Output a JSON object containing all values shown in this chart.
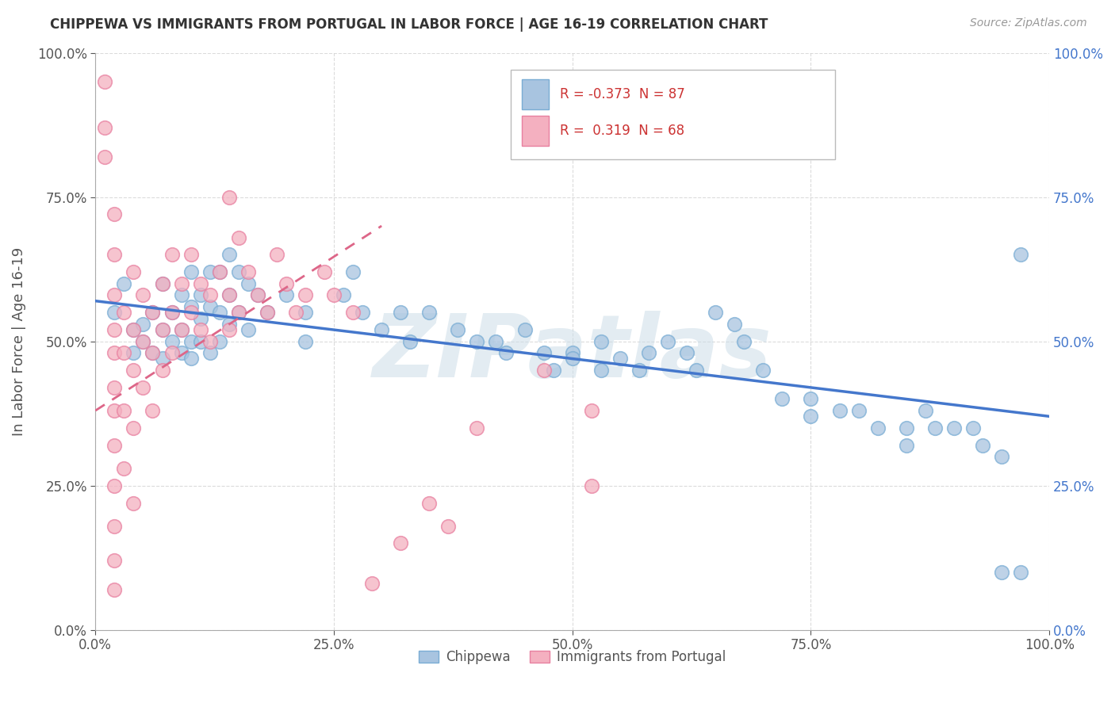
{
  "title": "CHIPPEWA VS IMMIGRANTS FROM PORTUGAL IN LABOR FORCE | AGE 16-19 CORRELATION CHART",
  "source_text": "Source: ZipAtlas.com",
  "ylabel": "In Labor Force | Age 16-19",
  "xlim": [
    0.0,
    1.0
  ],
  "ylim": [
    0.0,
    1.0
  ],
  "xtick_labels": [
    "0.0%",
    "25.0%",
    "50.0%",
    "75.0%",
    "100.0%"
  ],
  "xtick_vals": [
    0.0,
    0.25,
    0.5,
    0.75,
    1.0
  ],
  "ytick_labels": [
    "0.0%",
    "25.0%",
    "50.0%",
    "75.0%",
    "100.0%"
  ],
  "ytick_vals": [
    0.0,
    0.25,
    0.5,
    0.75,
    1.0
  ],
  "chippewa_color": "#a8c4e0",
  "chippewa_edge": "#7aadd4",
  "portugal_color": "#f4b0c0",
  "portugal_edge": "#e880a0",
  "chippewa_R": -0.373,
  "chippewa_N": 87,
  "portugal_R": 0.319,
  "portugal_N": 68,
  "trend_blue": "#4477cc",
  "trend_pink": "#dd6688",
  "watermark": "ZIPatlas",
  "watermark_color": "#ccdde8",
  "background_color": "#ffffff",
  "legend_edge": "#bbbbbb",
  "chippewa_scatter": [
    [
      0.02,
      0.55
    ],
    [
      0.03,
      0.6
    ],
    [
      0.04,
      0.52
    ],
    [
      0.04,
      0.48
    ],
    [
      0.05,
      0.53
    ],
    [
      0.05,
      0.5
    ],
    [
      0.06,
      0.55
    ],
    [
      0.06,
      0.48
    ],
    [
      0.07,
      0.6
    ],
    [
      0.07,
      0.52
    ],
    [
      0.07,
      0.47
    ],
    [
      0.08,
      0.55
    ],
    [
      0.08,
      0.5
    ],
    [
      0.09,
      0.58
    ],
    [
      0.09,
      0.52
    ],
    [
      0.09,
      0.48
    ],
    [
      0.1,
      0.62
    ],
    [
      0.1,
      0.56
    ],
    [
      0.1,
      0.5
    ],
    [
      0.1,
      0.47
    ],
    [
      0.11,
      0.58
    ],
    [
      0.11,
      0.54
    ],
    [
      0.11,
      0.5
    ],
    [
      0.12,
      0.62
    ],
    [
      0.12,
      0.56
    ],
    [
      0.12,
      0.48
    ],
    [
      0.13,
      0.62
    ],
    [
      0.13,
      0.55
    ],
    [
      0.13,
      0.5
    ],
    [
      0.14,
      0.65
    ],
    [
      0.14,
      0.58
    ],
    [
      0.14,
      0.53
    ],
    [
      0.15,
      0.62
    ],
    [
      0.15,
      0.55
    ],
    [
      0.16,
      0.6
    ],
    [
      0.16,
      0.52
    ],
    [
      0.17,
      0.58
    ],
    [
      0.18,
      0.55
    ],
    [
      0.2,
      0.58
    ],
    [
      0.22,
      0.55
    ],
    [
      0.22,
      0.5
    ],
    [
      0.26,
      0.58
    ],
    [
      0.27,
      0.62
    ],
    [
      0.28,
      0.55
    ],
    [
      0.3,
      0.52
    ],
    [
      0.32,
      0.55
    ],
    [
      0.33,
      0.5
    ],
    [
      0.35,
      0.55
    ],
    [
      0.38,
      0.52
    ],
    [
      0.4,
      0.5
    ],
    [
      0.42,
      0.5
    ],
    [
      0.43,
      0.48
    ],
    [
      0.45,
      0.52
    ],
    [
      0.47,
      0.48
    ],
    [
      0.48,
      0.45
    ],
    [
      0.5,
      0.48
    ],
    [
      0.5,
      0.47
    ],
    [
      0.53,
      0.5
    ],
    [
      0.53,
      0.45
    ],
    [
      0.55,
      0.47
    ],
    [
      0.57,
      0.45
    ],
    [
      0.58,
      0.48
    ],
    [
      0.6,
      0.5
    ],
    [
      0.62,
      0.48
    ],
    [
      0.63,
      0.45
    ],
    [
      0.65,
      0.55
    ],
    [
      0.67,
      0.53
    ],
    [
      0.68,
      0.5
    ],
    [
      0.7,
      0.45
    ],
    [
      0.72,
      0.4
    ],
    [
      0.75,
      0.4
    ],
    [
      0.75,
      0.37
    ],
    [
      0.78,
      0.38
    ],
    [
      0.8,
      0.38
    ],
    [
      0.82,
      0.35
    ],
    [
      0.85,
      0.35
    ],
    [
      0.85,
      0.32
    ],
    [
      0.87,
      0.38
    ],
    [
      0.88,
      0.35
    ],
    [
      0.9,
      0.35
    ],
    [
      0.92,
      0.35
    ],
    [
      0.93,
      0.32
    ],
    [
      0.95,
      0.1
    ],
    [
      0.95,
      0.3
    ],
    [
      0.97,
      0.1
    ],
    [
      0.97,
      0.65
    ],
    [
      0.55,
      0.88
    ]
  ],
  "portugal_scatter": [
    [
      0.01,
      0.95
    ],
    [
      0.01,
      0.87
    ],
    [
      0.01,
      0.82
    ],
    [
      0.02,
      0.72
    ],
    [
      0.02,
      0.65
    ],
    [
      0.02,
      0.58
    ],
    [
      0.02,
      0.52
    ],
    [
      0.02,
      0.48
    ],
    [
      0.02,
      0.42
    ],
    [
      0.02,
      0.38
    ],
    [
      0.02,
      0.32
    ],
    [
      0.02,
      0.25
    ],
    [
      0.02,
      0.18
    ],
    [
      0.02,
      0.12
    ],
    [
      0.02,
      0.07
    ],
    [
      0.03,
      0.55
    ],
    [
      0.03,
      0.48
    ],
    [
      0.03,
      0.38
    ],
    [
      0.03,
      0.28
    ],
    [
      0.04,
      0.62
    ],
    [
      0.04,
      0.52
    ],
    [
      0.04,
      0.45
    ],
    [
      0.04,
      0.35
    ],
    [
      0.04,
      0.22
    ],
    [
      0.05,
      0.58
    ],
    [
      0.05,
      0.5
    ],
    [
      0.05,
      0.42
    ],
    [
      0.06,
      0.55
    ],
    [
      0.06,
      0.48
    ],
    [
      0.06,
      0.38
    ],
    [
      0.07,
      0.6
    ],
    [
      0.07,
      0.52
    ],
    [
      0.07,
      0.45
    ],
    [
      0.08,
      0.65
    ],
    [
      0.08,
      0.55
    ],
    [
      0.08,
      0.48
    ],
    [
      0.09,
      0.6
    ],
    [
      0.09,
      0.52
    ],
    [
      0.1,
      0.65
    ],
    [
      0.1,
      0.55
    ],
    [
      0.11,
      0.6
    ],
    [
      0.11,
      0.52
    ],
    [
      0.12,
      0.58
    ],
    [
      0.12,
      0.5
    ],
    [
      0.13,
      0.62
    ],
    [
      0.14,
      0.75
    ],
    [
      0.14,
      0.58
    ],
    [
      0.14,
      0.52
    ],
    [
      0.15,
      0.68
    ],
    [
      0.15,
      0.55
    ],
    [
      0.16,
      0.62
    ],
    [
      0.17,
      0.58
    ],
    [
      0.18,
      0.55
    ],
    [
      0.19,
      0.65
    ],
    [
      0.2,
      0.6
    ],
    [
      0.21,
      0.55
    ],
    [
      0.22,
      0.58
    ],
    [
      0.24,
      0.62
    ],
    [
      0.25,
      0.58
    ],
    [
      0.27,
      0.55
    ],
    [
      0.29,
      0.08
    ],
    [
      0.32,
      0.15
    ],
    [
      0.35,
      0.22
    ],
    [
      0.37,
      0.18
    ],
    [
      0.4,
      0.35
    ],
    [
      0.47,
      0.45
    ],
    [
      0.52,
      0.38
    ],
    [
      0.52,
      0.25
    ]
  ],
  "chippewa_trend_x": [
    0.0,
    1.0
  ],
  "chippewa_trend_y": [
    0.57,
    0.37
  ],
  "portugal_trend_x": [
    0.0,
    0.3
  ],
  "portugal_trend_y": [
    0.38,
    0.7
  ]
}
